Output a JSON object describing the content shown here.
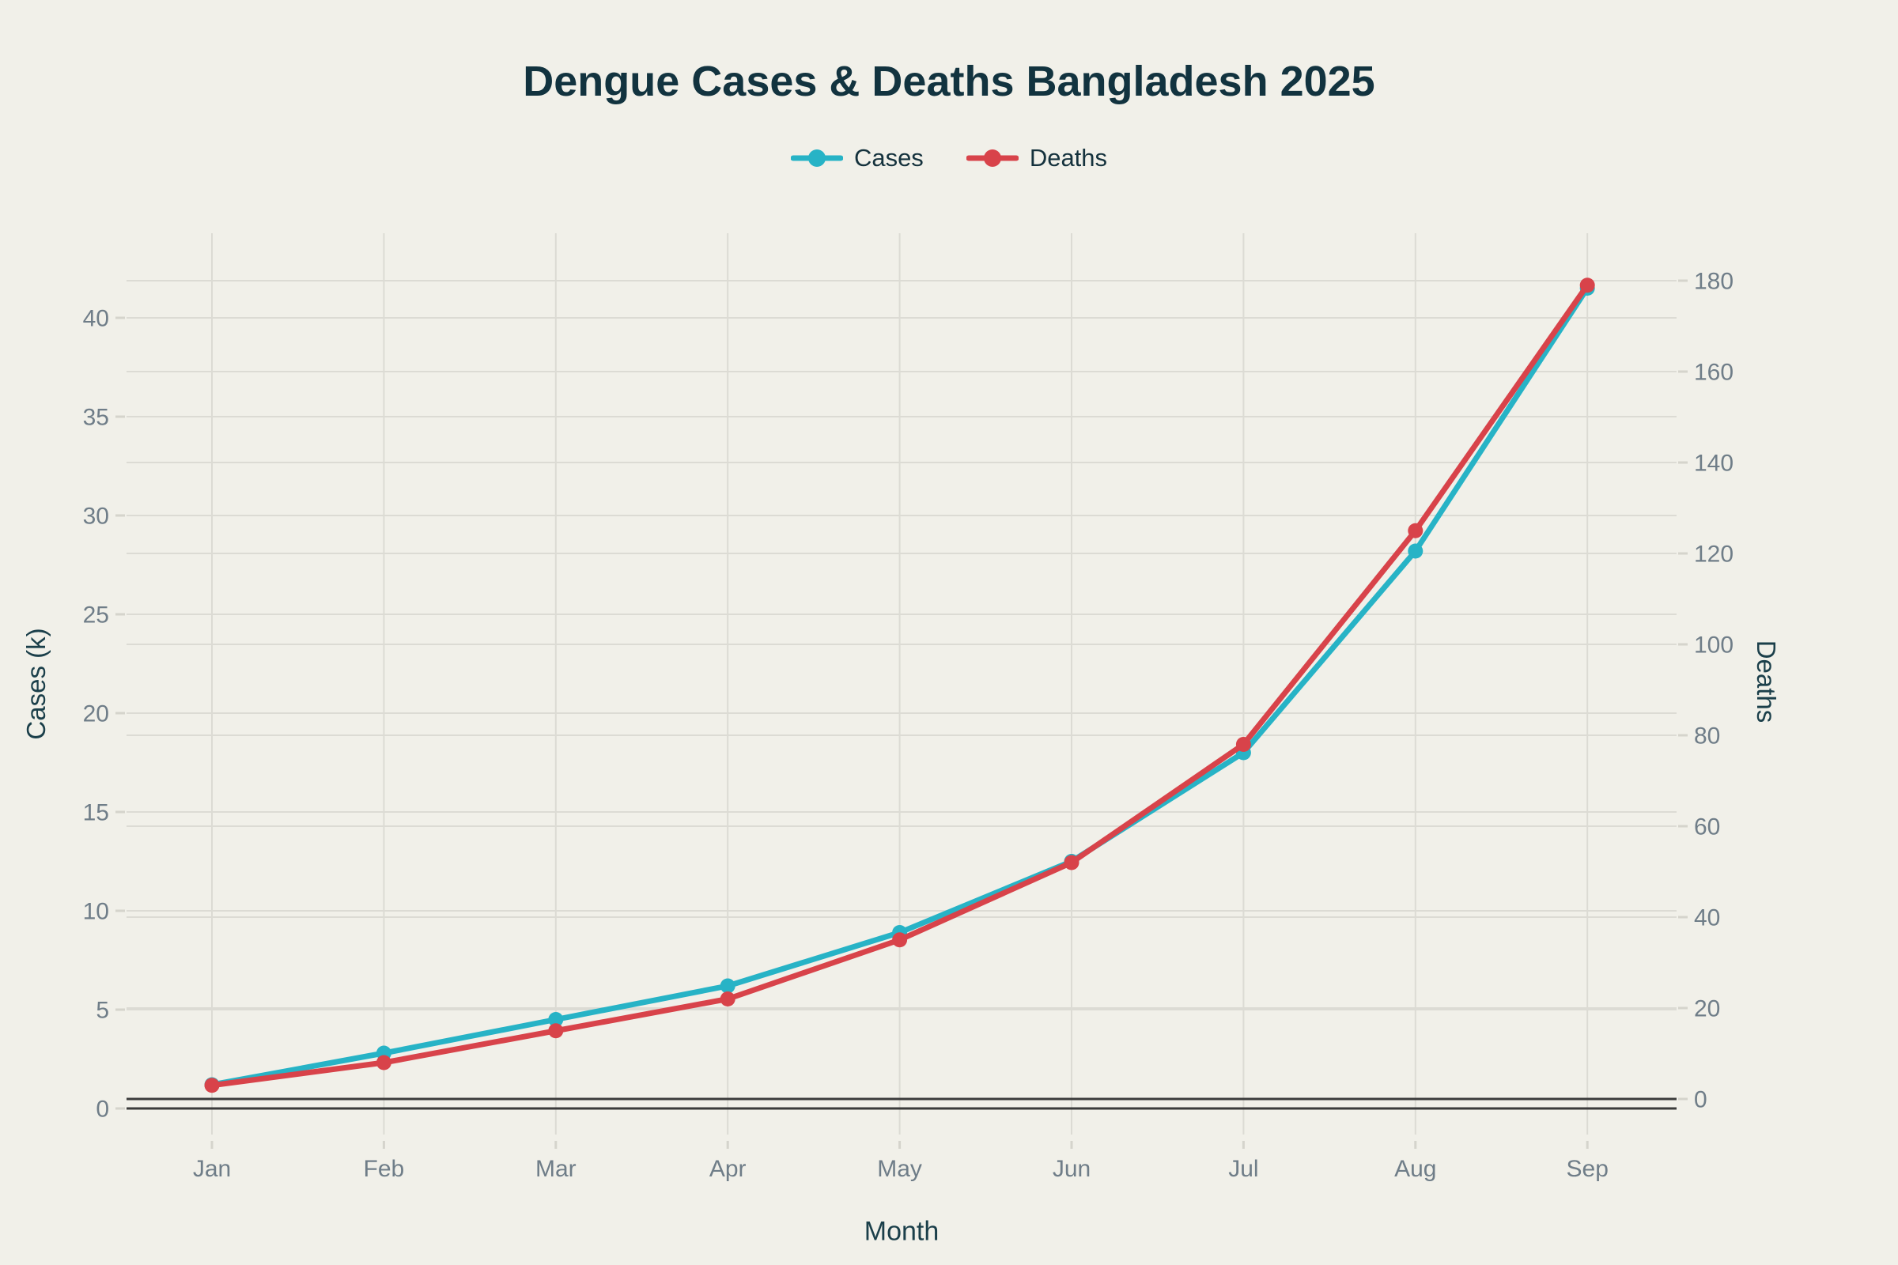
{
  "page": {
    "background": "#f1f0e9"
  },
  "header": {
    "title": "Dengue Cases & Deaths Bangladesh 2025"
  },
  "legend": {
    "position": "top-center",
    "items": [
      {
        "label": "Cases",
        "color": "#27b3c6"
      },
      {
        "label": "Deaths",
        "color": "#d8434a"
      }
    ]
  },
  "axes": {
    "left_title": "Cases (k)",
    "right_title": "Deaths",
    "x_title": "Month"
  },
  "chart_data": {
    "type": "line",
    "title": "Dengue Cases & Deaths Bangladesh 2025",
    "categories": [
      "Jan",
      "Feb",
      "Mar",
      "Apr",
      "May",
      "Jun",
      "Jul",
      "Aug",
      "Sep"
    ],
    "series": [
      {
        "name": "Cases",
        "axis": "left",
        "unit": "thousands",
        "color": "#27b3c6",
        "values": [
          1.2,
          2.8,
          4.5,
          6.2,
          8.9,
          12.5,
          18,
          28.2,
          41.5
        ]
      },
      {
        "name": "Deaths",
        "axis": "right",
        "unit": "count",
        "color": "#d8434a",
        "values": [
          3,
          8,
          15,
          22,
          35,
          52,
          78,
          125,
          179
        ]
      }
    ],
    "xlabel": "Month",
    "ylabel_left": "Cases (k)",
    "ylabel_right": "Deaths",
    "left_axis": {
      "ticks": [
        0,
        5,
        10,
        15,
        20,
        25,
        30,
        35,
        40
      ],
      "range": [
        0,
        44.3
      ]
    },
    "right_axis": {
      "ticks": [
        0,
        20,
        40,
        60,
        80,
        100,
        120,
        140,
        160,
        180
      ],
      "range": [
        0,
        190.4
      ]
    },
    "grid": true,
    "legend_position": "top-center",
    "marker": "circle"
  },
  "style": {
    "grid_color": "#dcdbd4",
    "tick_dash_color": "#d5d4cc",
    "zero_line_color": "#3b3b3b",
    "tick_label_color": "#6f7d88",
    "title_color": "#12333f",
    "axis_title_color": "#1b3f4a"
  }
}
